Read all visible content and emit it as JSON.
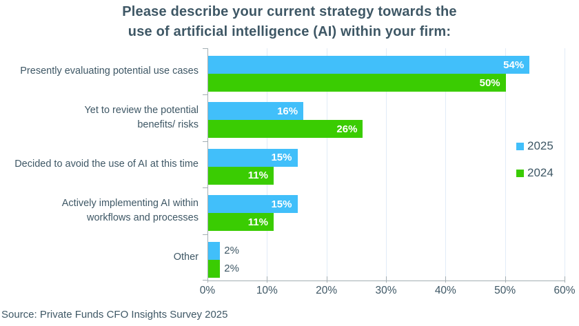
{
  "chart_data": {
    "type": "bar",
    "orientation": "horizontal",
    "title_line1": "Please describe your current strategy towards the",
    "title_line2": "use of artificial intelligence (AI) within your firm:",
    "categories": [
      [
        "Presently evaluating potential use cases"
      ],
      [
        "Yet to review the potential",
        "benefits/ risks"
      ],
      [
        "Decided to avoid the use of AI at this time"
      ],
      [
        "Actively implementing AI within",
        "workflows and processes"
      ],
      [
        "Other"
      ]
    ],
    "series": [
      {
        "name": "2025",
        "color": "#41BFFA",
        "values": [
          54,
          16,
          15,
          15,
          2
        ]
      },
      {
        "name": "2024",
        "color": "#3ACC02",
        "values": [
          50,
          26,
          11,
          11,
          2
        ]
      }
    ],
    "value_suffix": "%",
    "outside_label_threshold": 5,
    "xlim": [
      0,
      60
    ],
    "x_ticks": [
      {
        "value": 0,
        "label": "0%"
      },
      {
        "value": 10,
        "label": "10%"
      },
      {
        "value": 20,
        "label": "20%"
      },
      {
        "value": 30,
        "label": "30%"
      },
      {
        "value": 40,
        "label": "40%"
      },
      {
        "value": 50,
        "label": "50%"
      },
      {
        "value": 60,
        "label": "60%"
      }
    ],
    "grid": true,
    "legend_position": "right"
  },
  "colors": {
    "text": "#3E5765",
    "gridline": "#E1EBF7",
    "axis": "#A3AEB3",
    "series_2025": "#41BFFA",
    "series_2024": "#3ACC02"
  },
  "source": "Source: Private Funds CFO Insights Survey 2025"
}
